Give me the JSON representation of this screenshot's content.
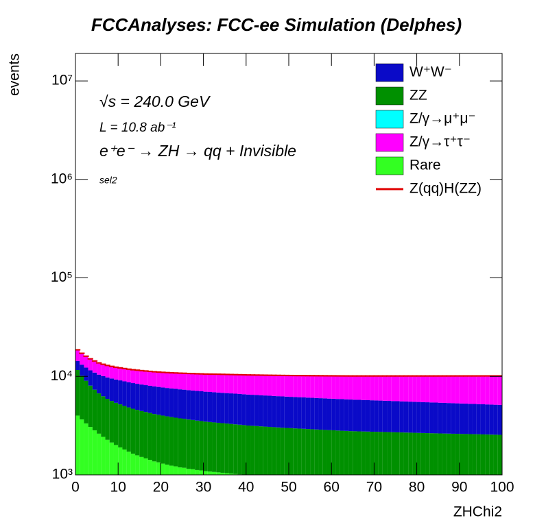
{
  "chart_data": {
    "type": "stacked_histogram",
    "title": "FCCAnalyses: FCC-ee Simulation (Delphes)",
    "x_label": "ZHChi2",
    "y_label": "events",
    "annotations": [
      "√s = 240.0 GeV",
      "L = 10.8 ab⁻¹",
      "e⁺e⁻ → ZH → qq + Invisible",
      "sel2"
    ],
    "log_y": true,
    "grid": false,
    "legend": "upper right",
    "xlim": [
      0,
      100
    ],
    "xticks": [
      0,
      10,
      20,
      30,
      40,
      50,
      60,
      70,
      80,
      90,
      100
    ],
    "ylim": [
      1000,
      19000000
    ],
    "yticks": [
      {
        "value": 1000,
        "label": "10³"
      },
      {
        "value": 10000,
        "label": "10⁴"
      },
      {
        "value": 100000,
        "label": "10⁵"
      },
      {
        "value": 1000000,
        "label": "10⁶"
      },
      {
        "value": 10000000,
        "label": "10⁷"
      }
    ],
    "bins": [
      0,
      1,
      2,
      3,
      4,
      5,
      6,
      7,
      8,
      9,
      10,
      11,
      12,
      13,
      14,
      15,
      16,
      17,
      18,
      19,
      20,
      21,
      22,
      23,
      24,
      25,
      26,
      27,
      28,
      29,
      30,
      31,
      32,
      33,
      34,
      35,
      36,
      37,
      38,
      39,
      40,
      41,
      42,
      43,
      44,
      45,
      46,
      47,
      48,
      49,
      50,
      51,
      52,
      53,
      54,
      55,
      56,
      57,
      58,
      59,
      60,
      61,
      62,
      63,
      64,
      65,
      66,
      67,
      68,
      69,
      70,
      71,
      72,
      73,
      74,
      75,
      76,
      77,
      78,
      79,
      80,
      81,
      82,
      83,
      84,
      85,
      86,
      87,
      88,
      89,
      90,
      91,
      92,
      93,
      94,
      95,
      96,
      97,
      98,
      99,
      100
    ],
    "series": [
      {
        "name": "W⁺W⁻",
        "color": "#0a0ac8",
        "values": [
          2700,
          3000,
          3250,
          3450,
          3600,
          3700,
          3780,
          3840,
          3880,
          3900,
          3910,
          3900,
          3880,
          3860,
          3840,
          3820,
          3800,
          3780,
          3760,
          3740,
          3720,
          3700,
          3680,
          3660,
          3640,
          3620,
          3600,
          3580,
          3560,
          3540,
          3520,
          3505,
          3490,
          3475,
          3460,
          3445,
          3430,
          3415,
          3400,
          3385,
          3370,
          3355,
          3340,
          3325,
          3310,
          3295,
          3280,
          3265,
          3250,
          3235,
          3220,
          3207,
          3194,
          3181,
          3168,
          3155,
          3142,
          3129,
          3116,
          3103,
          3090,
          3077,
          3064,
          3051,
          3038,
          3025,
          3012,
          2999,
          2986,
          2973,
          2960,
          2947,
          2934,
          2921,
          2908,
          2895,
          2882,
          2869,
          2856,
          2843,
          2830,
          2817,
          2804,
          2791,
          2778,
          2765,
          2752,
          2739,
          2726,
          2713,
          2700,
          2687,
          2674,
          2661,
          2648,
          2635,
          2622,
          2609,
          2596,
          2583
        ]
      },
      {
        "name": "ZZ",
        "color": "#009000",
        "values": [
          7600,
          6500,
          5700,
          5000,
          4500,
          4100,
          3850,
          3650,
          3500,
          3380,
          3300,
          3200,
          3120,
          3050,
          2990,
          2930,
          2880,
          2830,
          2780,
          2740,
          2700,
          2660,
          2620,
          2590,
          2560,
          2530,
          2500,
          2470,
          2440,
          2410,
          2380,
          2360,
          2340,
          2320,
          2300,
          2280,
          2260,
          2240,
          2220,
          2200,
          2180,
          2165,
          2150,
          2135,
          2120,
          2105,
          2090,
          2075,
          2060,
          2050,
          2040,
          2030,
          2020,
          2010,
          2000,
          1990,
          1980,
          1970,
          1960,
          1950,
          1940,
          1930,
          1920,
          1910,
          1900,
          1895,
          1890,
          1885,
          1880,
          1875,
          1870,
          1865,
          1860,
          1855,
          1850,
          1845,
          1840,
          1835,
          1830,
          1825,
          1820,
          1815,
          1810,
          1805,
          1800,
          1795,
          1790,
          1785,
          1780,
          1775,
          1770,
          1765,
          1760,
          1755,
          1750,
          1745,
          1740,
          1735,
          1730,
          1725
        ]
      },
      {
        "name": "Z/γ→μ⁺μ⁻",
        "color": "#00ffff",
        "values": [
          0,
          0,
          0,
          0,
          0,
          0,
          0,
          0,
          0,
          0,
          0,
          0,
          0,
          0,
          0,
          0,
          0,
          0,
          0,
          0,
          0,
          0,
          0,
          0,
          0,
          0,
          0,
          0,
          0,
          0,
          0,
          0,
          0,
          0,
          0,
          0,
          0,
          0,
          0,
          0,
          0,
          0,
          0,
          0,
          0,
          0,
          0,
          0,
          0,
          0,
          0,
          0,
          0,
          0,
          0,
          0,
          0,
          0,
          0,
          0,
          0,
          0,
          0,
          0,
          0,
          0,
          0,
          0,
          0,
          0,
          0,
          0,
          0,
          0,
          0,
          0,
          0,
          0,
          0,
          0,
          0,
          0,
          0,
          0,
          0,
          0,
          0,
          0,
          0,
          0,
          0,
          0,
          0,
          0,
          0,
          0,
          0,
          0,
          0,
          0
        ]
      },
      {
        "name": "Z/γ→τ⁺τ⁻",
        "color": "#ff00ff",
        "values": [
          4300,
          4000,
          3750,
          3550,
          3400,
          3280,
          3200,
          3150,
          3110,
          3090,
          3080,
          3090,
          3100,
          3120,
          3140,
          3160,
          3180,
          3200,
          3220,
          3240,
          3260,
          3290,
          3320,
          3350,
          3380,
          3410,
          3440,
          3470,
          3500,
          3530,
          3560,
          3590,
          3620,
          3650,
          3670,
          3690,
          3710,
          3730,
          3750,
          3770,
          3790,
          3810,
          3830,
          3850,
          3870,
          3890,
          3910,
          3930,
          3950,
          3970,
          3990,
          4010,
          4030,
          4050,
          4070,
          4090,
          4110,
          4130,
          4150,
          4170,
          4190,
          4210,
          4230,
          4250,
          4270,
          4290,
          4310,
          4330,
          4350,
          4370,
          4390,
          4410,
          4430,
          4450,
          4470,
          4490,
          4510,
          4530,
          4550,
          4570,
          4590,
          4610,
          4630,
          4650,
          4670,
          4690,
          4710,
          4730,
          4750,
          4770,
          4790,
          4810,
          4830,
          4850,
          4870,
          4890,
          4910,
          4930,
          4950,
          4970
        ]
      },
      {
        "name": "Rare",
        "color": "#33ff22",
        "values": [
          4000,
          3650,
          3330,
          3060,
          2830,
          2620,
          2430,
          2270,
          2130,
          2010,
          1900,
          1810,
          1720,
          1640,
          1580,
          1520,
          1470,
          1420,
          1370,
          1340,
          1300,
          1270,
          1240,
          1220,
          1190,
          1180,
          1150,
          1140,
          1120,
          1110,
          1090,
          1080,
          1070,
          1060,
          1050,
          1040,
          1030,
          1020,
          1010,
          1000,
          990,
          985,
          980,
          975,
          970,
          965,
          960,
          955,
          950,
          945,
          940,
          935,
          930,
          925,
          920,
          915,
          910,
          905,
          900,
          895,
          895,
          890,
          887,
          884,
          881,
          878,
          875,
          873,
          871,
          869,
          868,
          866,
          864,
          862,
          860,
          858,
          856,
          854,
          853,
          851,
          848,
          846,
          844,
          843,
          841,
          840,
          839,
          838,
          837,
          836,
          835,
          834,
          833,
          832,
          831,
          830,
          829,
          828,
          827,
          826
        ]
      },
      {
        "name": "Z(qq)H(ZZ)",
        "color": "#e00000",
        "values": [
          20,
          20,
          20,
          20,
          20,
          20,
          20,
          20,
          20,
          20,
          20,
          20,
          20,
          20,
          20,
          20,
          20,
          20,
          20,
          20,
          20,
          20,
          20,
          20,
          20,
          20,
          20,
          20,
          20,
          20,
          20,
          20,
          20,
          20,
          20,
          20,
          20,
          20,
          20,
          20,
          20,
          20,
          20,
          20,
          20,
          20,
          20,
          20,
          20,
          20,
          20,
          20,
          20,
          20,
          20,
          20,
          20,
          20,
          20,
          20,
          20,
          20,
          20,
          20,
          20,
          20,
          20,
          20,
          20,
          20,
          20,
          20,
          20,
          20,
          20,
          20,
          20,
          20,
          20,
          20,
          20,
          20,
          20,
          20,
          20,
          20,
          20,
          20,
          20,
          20,
          20,
          20,
          20,
          20,
          20,
          20,
          20,
          20,
          20,
          20
        ]
      }
    ]
  }
}
